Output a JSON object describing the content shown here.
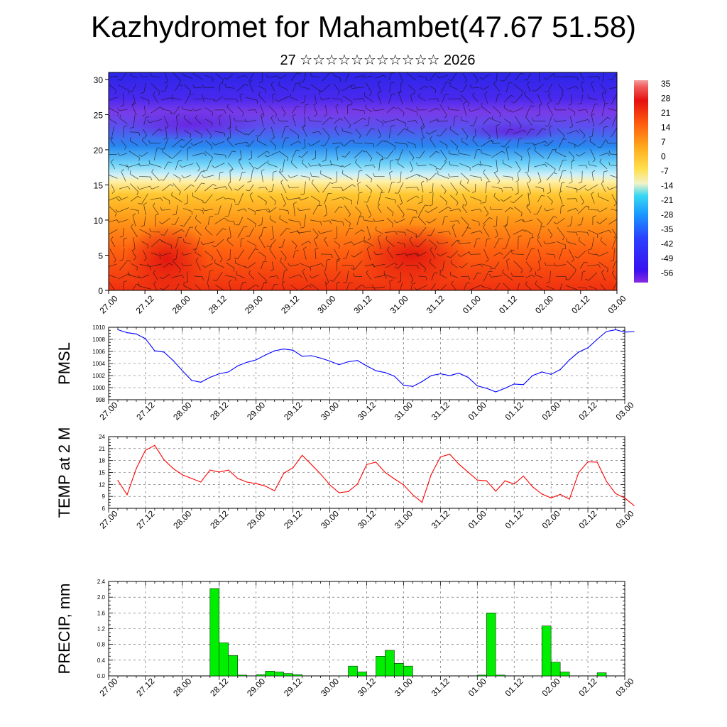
{
  "title": "Kazhydromet for Mahambet(47.67 51.58)",
  "subtitle": "27 ☆☆☆☆☆☆☆☆☆☆☆ 2026",
  "time_labels": [
    "27.00",
    "27.12",
    "28.00",
    "28.12",
    "29.00",
    "29.12",
    "30.00",
    "30.12",
    "31.00",
    "31.12",
    "01.00",
    "01.12",
    "02.00",
    "02.12",
    "03.00"
  ],
  "colors": {
    "pmsl_line": "#0000ff",
    "temp_line": "#ff0000",
    "precip_bar": "#00ee00"
  },
  "chart_data": [
    {
      "type": "heatmap",
      "name": "cross-section",
      "title": "",
      "xlabel": "",
      "ylabel": "",
      "ylim": [
        0,
        31
      ],
      "y_ticks": [
        0,
        5,
        10,
        15,
        20,
        25,
        30
      ],
      "colorbar_labels": [
        "35",
        "28",
        "21",
        "14",
        "7",
        "0",
        "-7",
        "-14",
        "-21",
        "-28",
        "-35",
        "-42",
        "-49",
        "-56"
      ],
      "colorbar_range": [
        -63,
        38
      ]
    },
    {
      "type": "line",
      "name": "pmsl",
      "ylabel": "PMSL",
      "ylim": [
        998,
        1010
      ],
      "y_ticks": [
        998,
        1000,
        1002,
        1004,
        1006,
        1008,
        1010
      ],
      "x": [
        0,
        1,
        2,
        3,
        4,
        5,
        6,
        7,
        8,
        9,
        10,
        11,
        12,
        13,
        14,
        15,
        16,
        17,
        18,
        19,
        20,
        21,
        22,
        23,
        24,
        25,
        26,
        27,
        28,
        29,
        30,
        31,
        32,
        33,
        34,
        35,
        36,
        37,
        38,
        39,
        40,
        41,
        42,
        43,
        44,
        45,
        46,
        47,
        48,
        49,
        50,
        51,
        52,
        53,
        54,
        55,
        56
      ],
      "values": [
        1009.6,
        1009.1,
        1008.9,
        1008.1,
        1006.1,
        1005.9,
        1004.5,
        1002.8,
        1001.2,
        1000.9,
        1001.7,
        1002.3,
        1002.6,
        1003.6,
        1004.2,
        1004.6,
        1005.4,
        1006.1,
        1006.4,
        1006.2,
        1005.2,
        1005.3,
        1004.9,
        1004.4,
        1003.8,
        1004.3,
        1004.5,
        1003.6,
        1002.8,
        1002.5,
        1001.9,
        1000.4,
        1000.2,
        1001.0,
        1002.0,
        1002.3,
        1002.0,
        1002.4,
        1001.7,
        1000.3,
        999.9,
        999.3,
        999.9,
        1000.6,
        1000.5,
        1002.0,
        1002.6,
        1002.2,
        1003.0,
        1004.6,
        1005.9,
        1006.6,
        1008.0,
        1009.3,
        1009.6,
        1009.2,
        1009.3
      ]
    },
    {
      "type": "line",
      "name": "temp",
      "ylabel": "TEMP at 2 M",
      "ylim": [
        6,
        24
      ],
      "y_ticks": [
        6,
        9,
        12,
        15,
        18,
        21,
        24
      ],
      "x": [
        0,
        1,
        2,
        3,
        4,
        5,
        6,
        7,
        8,
        9,
        10,
        11,
        12,
        13,
        14,
        15,
        16,
        17,
        18,
        19,
        20,
        21,
        22,
        23,
        24,
        25,
        26,
        27,
        28,
        29,
        30,
        31,
        32,
        33,
        34,
        35,
        36,
        37,
        38,
        39,
        40,
        41,
        42,
        43,
        44,
        45,
        46,
        47,
        48,
        49,
        50,
        51,
        52,
        53,
        54,
        55,
        56
      ],
      "values": [
        13.0,
        9.4,
        16.0,
        20.6,
        21.8,
        18.2,
        16.0,
        14.4,
        13.5,
        12.6,
        15.6,
        15.1,
        15.6,
        13.5,
        12.6,
        12.2,
        11.6,
        10.4,
        14.8,
        16.2,
        19.3,
        17.0,
        14.6,
        11.9,
        9.9,
        10.2,
        12.1,
        17.0,
        17.6,
        15.0,
        13.4,
        11.9,
        9.4,
        7.5,
        14.5,
        18.9,
        19.6,
        17.1,
        15.1,
        13.1,
        12.9,
        10.3,
        12.9,
        12.1,
        14.1,
        11.4,
        9.6,
        8.6,
        9.5,
        8.3,
        15.0,
        17.7,
        17.6,
        12.8,
        9.7,
        8.6,
        6.7
      ]
    },
    {
      "type": "bar",
      "name": "precip",
      "ylabel": "PRECIP, mm",
      "ylim": [
        0,
        2.4
      ],
      "y_ticks": [
        0.0,
        0.4,
        0.8,
        1.2,
        1.6,
        2.0,
        2.4
      ],
      "y_tick_labels": [
        "0.0",
        "0.4",
        "0.8",
        "1.2",
        "1.6",
        "2.0",
        "2.4"
      ],
      "x": [
        0,
        1,
        2,
        3,
        4,
        5,
        6,
        7,
        8,
        9,
        10,
        11,
        12,
        13,
        14,
        15,
        16,
        17,
        18,
        19,
        20,
        21,
        22,
        23,
        24,
        25,
        26,
        27,
        28,
        29,
        30,
        31,
        32,
        33,
        34,
        35,
        36,
        37,
        38,
        39,
        40,
        41,
        42,
        43,
        44,
        45,
        46,
        47,
        48,
        49,
        50,
        51,
        52,
        53,
        54,
        55,
        56
      ],
      "values": [
        0,
        0,
        0,
        0,
        0,
        0,
        0,
        0,
        0,
        0,
        0,
        2.22,
        0.84,
        0.52,
        0.02,
        0,
        0.03,
        0.12,
        0.1,
        0.06,
        0.03,
        0,
        0,
        0,
        0,
        0,
        0.25,
        0.1,
        0,
        0.5,
        0.65,
        0.32,
        0.25,
        0,
        0,
        0,
        0,
        0,
        0,
        0,
        0.02,
        1.6,
        0.02,
        0,
        0,
        0,
        0,
        1.27,
        0.35,
        0.1,
        0,
        0,
        0,
        0.08,
        0,
        0,
        0
      ]
    }
  ]
}
